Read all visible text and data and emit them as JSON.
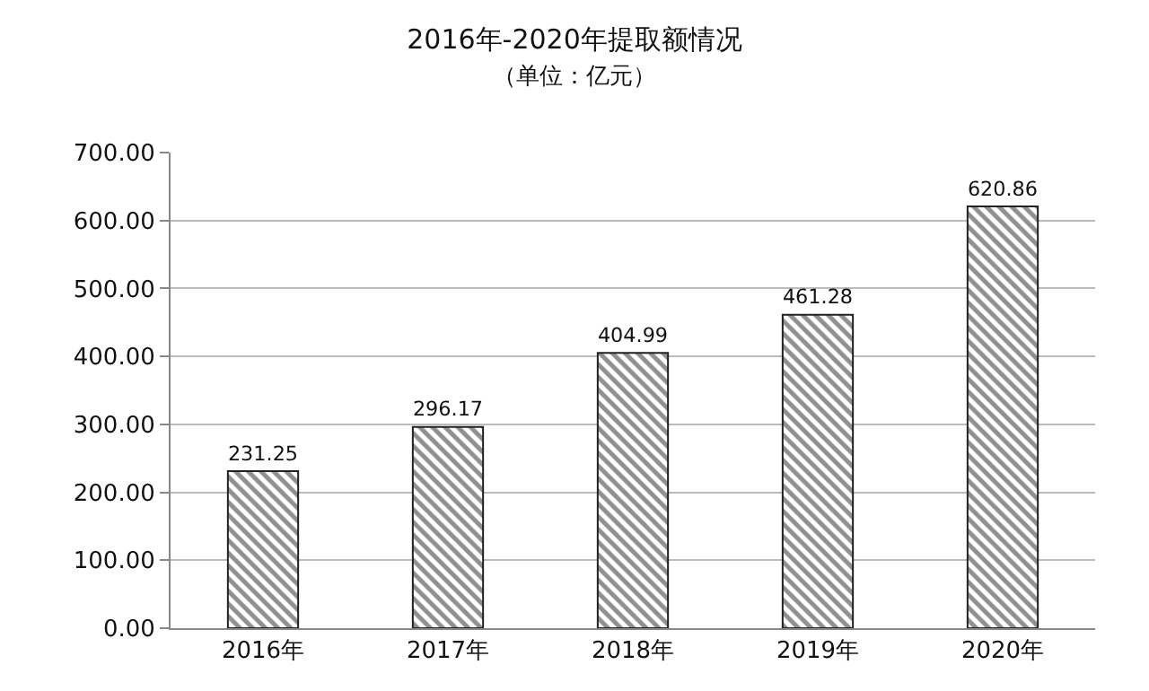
{
  "chart_data": {
    "type": "bar",
    "title": "2016年-2020年提取额情况",
    "subtitle": "（单位：亿元）",
    "categories": [
      "2016年",
      "2017年",
      "2018年",
      "2019年",
      "2020年"
    ],
    "values": [
      231.25,
      296.17,
      404.99,
      461.28,
      620.86
    ],
    "value_labels": [
      "231.25",
      "296.17",
      "404.99",
      "461.28",
      "620.86"
    ],
    "color": "#222222",
    "ylim": [
      0,
      700
    ],
    "yticks": [
      {
        "value": 0,
        "label": "0.00"
      },
      {
        "value": 100,
        "label": "100.00"
      },
      {
        "value": 200,
        "label": "200.00"
      },
      {
        "value": 300,
        "label": "300.00"
      },
      {
        "value": 400,
        "label": "400.00"
      },
      {
        "value": 500,
        "label": "500.00"
      },
      {
        "value": 600,
        "label": "600.00"
      },
      {
        "value": 700,
        "label": "700.00"
      }
    ],
    "grid": "y"
  }
}
